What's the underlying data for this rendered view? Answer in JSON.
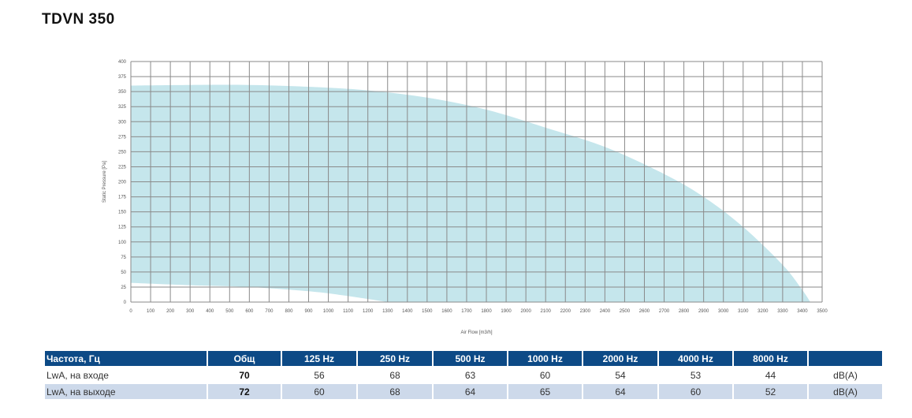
{
  "title": "TDVN 350",
  "chart_data": {
    "type": "area",
    "xlabel": "Air Flow [m3/h]",
    "ylabel": "Static Pressure [Pa]",
    "xlim": [
      0,
      3500
    ],
    "ylim": [
      0,
      400
    ],
    "xticks": [
      0,
      100,
      200,
      300,
      400,
      500,
      600,
      700,
      800,
      900,
      1000,
      1100,
      1200,
      1300,
      1400,
      1500,
      1600,
      1700,
      1800,
      1900,
      2000,
      2100,
      2200,
      2300,
      2400,
      2500,
      2600,
      2700,
      2800,
      2900,
      3000,
      3100,
      3200,
      3300,
      3400,
      3500
    ],
    "yticks": [
      0,
      25,
      50,
      75,
      100,
      125,
      150,
      175,
      200,
      225,
      250,
      275,
      300,
      325,
      350,
      375,
      400
    ],
    "grid": true,
    "fill_color": "#bfe3ea",
    "upper_curve": {
      "x": [
        0,
        300,
        600,
        900,
        1200,
        1500,
        1800,
        2100,
        2400,
        2700,
        2900,
        3100,
        3300,
        3400,
        3440
      ],
      "y": [
        360,
        361,
        361,
        358,
        352,
        340,
        320,
        290,
        258,
        213,
        175,
        125,
        62,
        20,
        0
      ]
    },
    "lower_curve": {
      "x": [
        0,
        300,
        600,
        900,
        1100,
        1300
      ],
      "y": [
        32,
        28,
        25,
        18,
        10,
        0
      ]
    }
  },
  "table": {
    "headers": [
      "Частота, Гц",
      "Общ",
      "125 Hz",
      "250 Hz",
      "500 Hz",
      "1000 Hz",
      "2000 Hz",
      "4000 Hz",
      "8000 Hz",
      ""
    ],
    "rows": [
      {
        "label": "LwA, на входе",
        "total": "70",
        "values": [
          "56",
          "68",
          "63",
          "60",
          "54",
          "53",
          "44"
        ],
        "unit": "dB(A)"
      },
      {
        "label": "LwA, на выходе",
        "total": "72",
        "values": [
          "60",
          "68",
          "64",
          "65",
          "64",
          "60",
          "52"
        ],
        "unit": "dB(A)"
      }
    ]
  }
}
